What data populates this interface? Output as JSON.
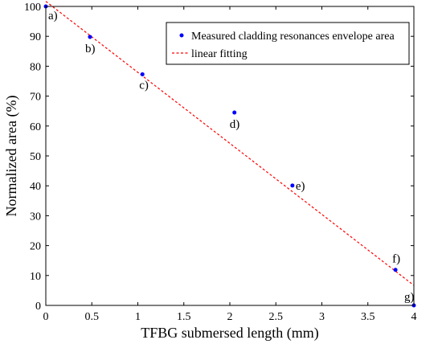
{
  "chart_data": {
    "type": "scatter",
    "xlabel": "TFBG submersed length (mm)",
    "ylabel": "Normalized area (%)",
    "xlim": [
      0,
      4
    ],
    "ylim": [
      0,
      100
    ],
    "x_ticks": [
      0,
      0.5,
      1,
      1.5,
      2,
      2.5,
      3,
      3.5,
      4
    ],
    "x_tick_labels": [
      "0",
      "0.5",
      "1",
      "1.5",
      "2",
      "2.5",
      "3",
      "3.5",
      "4"
    ],
    "y_ticks": [
      0,
      10,
      20,
      30,
      40,
      50,
      60,
      70,
      80,
      90,
      100
    ],
    "y_tick_labels": [
      "0",
      "10",
      "20",
      "30",
      "40",
      "50",
      "60",
      "70",
      "80",
      "90",
      "100"
    ],
    "grid": false,
    "legend_position": "top-right",
    "series": [
      {
        "name": "Measured cladding resonances envelope area",
        "kind": "scatter",
        "color": "#0000ff",
        "x": [
          0,
          0.48,
          1.05,
          2.05,
          2.68,
          3.8,
          4.0
        ],
        "y": [
          100,
          89.8,
          77.3,
          64.5,
          40.1,
          11.9,
          0
        ],
        "labels": [
          "a)",
          "b)",
          "c)",
          "d)",
          "e)",
          "f)",
          "g)"
        ]
      },
      {
        "name": "linear fitting",
        "kind": "line",
        "style": "dashed",
        "color": "#ff0000",
        "x": [
          0,
          4
        ],
        "y": [
          101.7,
          6.7
        ]
      }
    ]
  }
}
